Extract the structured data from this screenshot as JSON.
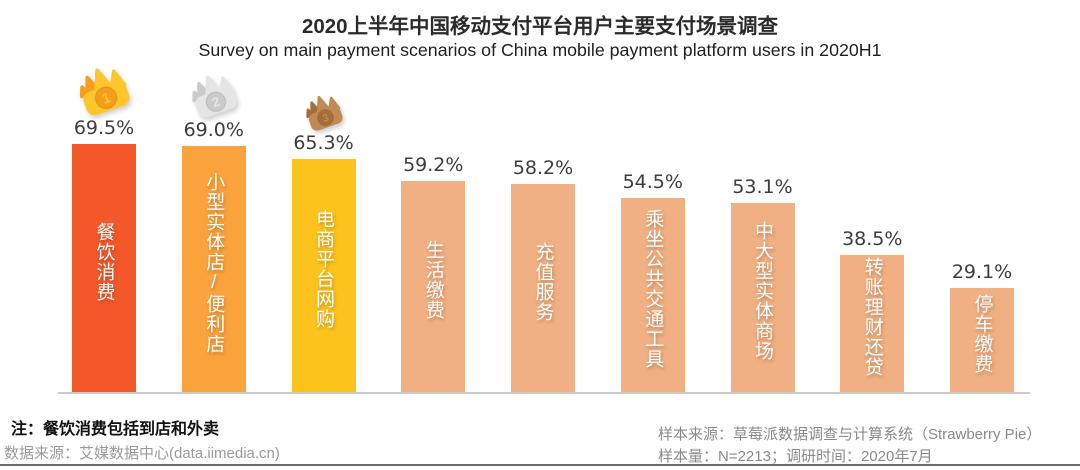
{
  "chart_data": {
    "type": "bar",
    "title": "2020上半年中国移动支付平台用户主要支付场景调查",
    "subtitle": "Survey on main payment scenarios of China mobile payment platform users in 2020H1",
    "categories": [
      "餐饮消费",
      "小型实体店/便利店",
      "电商平台网购",
      "生活缴费",
      "充值服务",
      "乘坐公共交通工具",
      "中大型实体商场",
      "转账理财还贷",
      "停车缴费"
    ],
    "values": [
      69.5,
      69.0,
      65.3,
      59.2,
      58.2,
      54.5,
      53.1,
      38.5,
      29.1
    ],
    "value_labels": [
      "69.5%",
      "69.0%",
      "65.3%",
      "59.2%",
      "58.2%",
      "54.5%",
      "53.1%",
      "38.5%",
      "29.1%"
    ],
    "bar_colors": [
      "#F4582A",
      "#FAA33C",
      "#FCC31D",
      "#F0B083",
      "#F0B083",
      "#F0B083",
      "#F0B083",
      "#F0B083",
      "#F0B083"
    ],
    "rank_badges": [
      {
        "rank": "1",
        "body": "#FFC62C",
        "accent": "#F79D1E"
      },
      {
        "rank": "2",
        "body": "#E5E5E5",
        "accent": "#CBCBCB"
      },
      {
        "rank": "3",
        "body": "#C18A54",
        "accent": "#A46D39"
      }
    ],
    "xlabel": "",
    "ylabel": "",
    "ylim": [
      0,
      75
    ],
    "grid": false,
    "legend": false
  },
  "footer": {
    "note": "注：餐饮消费包括到店和外卖",
    "data_source": "数据来源：艾媒数据中心(data.iimedia.cn)",
    "sample_source": "样本来源：草莓派数据调查与计算系统（Strawberry Pie）",
    "sample_info": "样本量：N=2213；调研时间：2020年7月"
  }
}
